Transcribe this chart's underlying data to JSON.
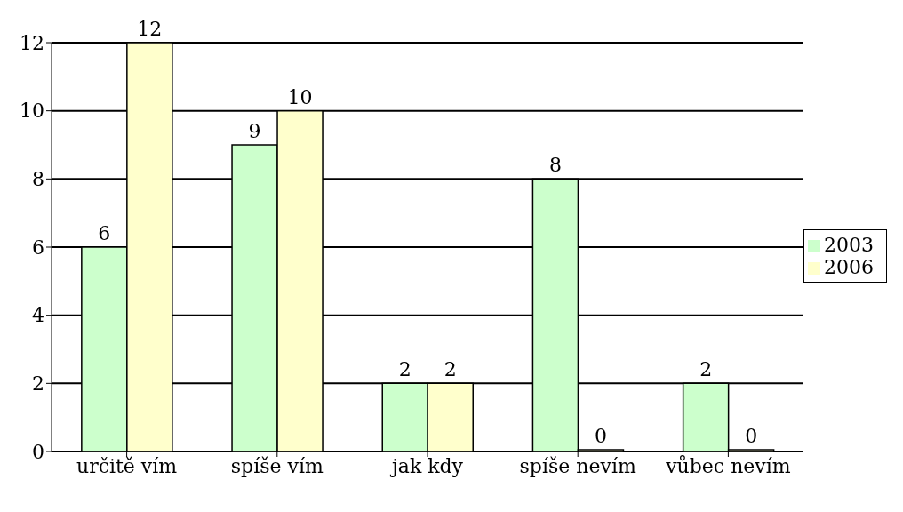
{
  "chart_data": {
    "type": "bar",
    "categories": [
      "určitě vím",
      "spíše vím",
      "jak kdy",
      "spíše nevím",
      "vůbec nevím"
    ],
    "series": [
      {
        "name": "2003",
        "color": "#ccffcc",
        "values": [
          6,
          9,
          2,
          8,
          2
        ]
      },
      {
        "name": "2006",
        "color": "#ffffcc",
        "values": [
          12,
          10,
          2,
          0,
          0
        ]
      }
    ],
    "ylim": [
      0,
      12
    ],
    "yticks": [
      0,
      2,
      4,
      6,
      8,
      10,
      12
    ],
    "grid": "y",
    "legend": "right",
    "data_labels": true
  }
}
